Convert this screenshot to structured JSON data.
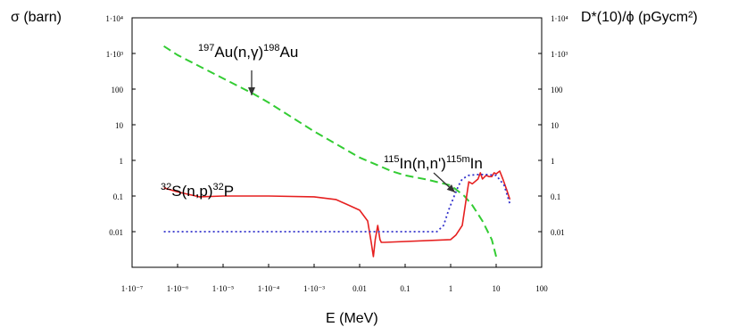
{
  "chart_data": {
    "type": "line",
    "title": "",
    "xlabel": "E (MeV)",
    "ylabel_left": "σ (barn)",
    "ylabel_right": "D*(10)/ϕ (pGycm²)",
    "xscale": "log",
    "yscale": "log",
    "xlim": [
      1e-07,
      100
    ],
    "ylim": [
      0.001,
      10000
    ],
    "grid": false,
    "legend": "none",
    "x_tick_labels": [
      "1·10⁻⁷",
      "1·10⁻⁶",
      "1·10⁻⁵",
      "1·10⁻⁴",
      "1·10⁻³",
      "0.01",
      "0.1",
      "1",
      "10",
      "100"
    ],
    "y_tick_labels": [
      "1·10⁴",
      "1·10³",
      "100",
      "10",
      "1",
      "0.1",
      "0.01"
    ],
    "y_tick_labels_right": [
      "1·10⁴",
      "1·10³",
      "100",
      "10",
      "1",
      "0.1",
      "0.01"
    ],
    "series": [
      {
        "color": "#33cc33",
        "style": "dashed",
        "x": [
          5e-07,
          1e-06,
          1e-05,
          5e-05,
          0.0001,
          0.001,
          0.01,
          0.05,
          0.1,
          0.3,
          1,
          2,
          3,
          5,
          8,
          10
        ],
        "y": [
          1600,
          900,
          200,
          70,
          42,
          6.5,
          1.2,
          0.5,
          0.38,
          0.29,
          0.2,
          0.1,
          0.055,
          0.02,
          0.006,
          0.002
        ]
      },
      {
        "color": "#e62020",
        "style": "solid",
        "x": [
          5e-07,
          1e-06,
          3e-06,
          1e-05,
          0.0001,
          0.001,
          0.003,
          0.005,
          0.01,
          0.015,
          0.018,
          0.02,
          0.022,
          0.025,
          0.028,
          0.03,
          0.035,
          1,
          1.3,
          1.8,
          2.5,
          3,
          4,
          4.5,
          5,
          6,
          7,
          8,
          9,
          10,
          12,
          14,
          17,
          20
        ],
        "y": [
          0.17,
          0.13,
          0.095,
          0.1,
          0.1,
          0.095,
          0.08,
          0.06,
          0.04,
          0.02,
          0.005,
          0.002,
          0.006,
          0.015,
          0.006,
          0.005,
          0.005,
          0.006,
          0.008,
          0.015,
          0.25,
          0.22,
          0.3,
          0.45,
          0.3,
          0.38,
          0.35,
          0.35,
          0.45,
          0.42,
          0.5,
          0.3,
          0.15,
          0.08
        ]
      },
      {
        "color": "#3333cc",
        "style": "dotted",
        "x": [
          5e-07,
          0.5,
          0.7,
          0.9,
          1.2,
          1.5,
          1.8,
          2.5,
          4,
          6,
          10,
          15,
          20
        ],
        "y": [
          0.01,
          0.01,
          0.015,
          0.04,
          0.1,
          0.2,
          0.3,
          0.38,
          0.4,
          0.4,
          0.38,
          0.2,
          0.06
        ]
      }
    ],
    "annotations": [
      {
        "pre": "197",
        "base1": "Au(n,γ)",
        "mid": "198",
        "base2": "Au"
      },
      {
        "pre": "115",
        "base1": "In(n,n')",
        "mid": "115m",
        "base2": "In"
      },
      {
        "pre": "32",
        "base1": "S(n,p)",
        "mid": "32",
        "base2": "P"
      }
    ]
  }
}
